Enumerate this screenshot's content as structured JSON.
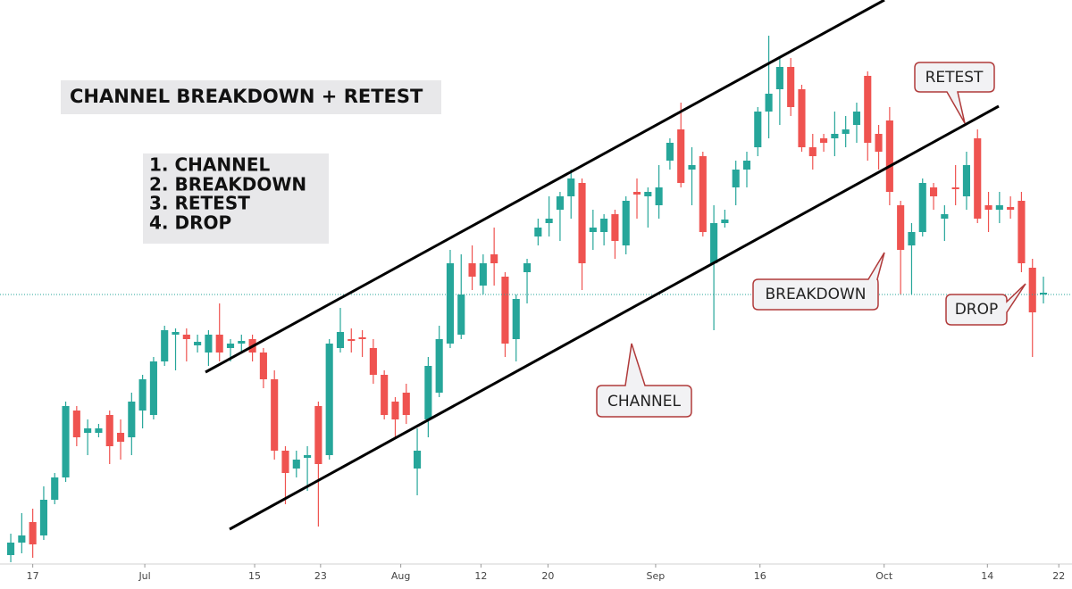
{
  "chart_data": {
    "type": "candlestick",
    "title": "CHANNEL BREAKDOWN + RETEST",
    "steps": [
      "1. CHANNEL",
      "2. BREAKDOWN",
      "3. RETEST",
      "4. DROP"
    ],
    "callouts": [
      "RETEST",
      "BREAKDOWN",
      "CHANNEL",
      "DROP"
    ],
    "up_color": "#26a69a",
    "down_color": "#ef5350",
    "xlim": [
      -0.98,
      96.6
    ],
    "ylim": [
      0,
      630
    ],
    "xticks": [
      {
        "value": 2,
        "label": "17"
      },
      {
        "value": 12.2,
        "label": "Jul"
      },
      {
        "value": 22.2,
        "label": "15"
      },
      {
        "value": 28.2,
        "label": "23"
      },
      {
        "value": 35.5,
        "label": "Aug"
      },
      {
        "value": 42.8,
        "label": "12"
      },
      {
        "value": 48.9,
        "label": "20"
      },
      {
        "value": 58.7,
        "label": "Sep"
      },
      {
        "value": 68.2,
        "label": "16"
      },
      {
        "value": 79.5,
        "label": "Oct"
      },
      {
        "value": 88.9,
        "label": "14"
      },
      {
        "value": 95.4,
        "label": "22"
      }
    ],
    "open": [
      8,
      22,
      45,
      30,
      70,
      95,
      170,
      145,
      145,
      165,
      145,
      140,
      170,
      165,
      225,
      255,
      255,
      243,
      235,
      255,
      240,
      245,
      250,
      235,
      205,
      125,
      105,
      117,
      175,
      120,
      240,
      250,
      252,
      240,
      210,
      180,
      190,
      105,
      160,
      190,
      245,
      255,
      335,
      310,
      345,
      320,
      250,
      325,
      365,
      380,
      395,
      410,
      425,
      370,
      370,
      390,
      355,
      415,
      410,
      400,
      450,
      485,
      440,
      455,
      335,
      380,
      420,
      440,
      465,
      505,
      530,
      555,
      530,
      465,
      475,
      475,
      480,
      490,
      545,
      480,
      495,
      400,
      355,
      370,
      420,
      385,
      420,
      410,
      475,
      400,
      395,
      398,
      405,
      330,
      300
    ],
    "high": [
      32,
      55,
      60,
      85,
      100,
      180,
      175,
      160,
      155,
      170,
      160,
      190,
      210,
      230,
      265,
      262,
      262,
      255,
      260,
      290,
      250,
      255,
      255,
      240,
      215,
      130,
      125,
      130,
      180,
      250,
      285,
      262,
      260,
      250,
      215,
      185,
      200,
      150,
      230,
      265,
      350,
      345,
      355,
      345,
      375,
      325,
      300,
      340,
      385,
      410,
      415,
      440,
      430,
      395,
      390,
      395,
      410,
      430,
      420,
      445,
      475,
      515,
      465,
      460,
      400,
      395,
      450,
      460,
      510,
      590,
      565,
      565,
      535,
      480,
      480,
      505,
      500,
      515,
      550,
      490,
      510,
      405,
      380,
      430,
      425,
      400,
      445,
      460,
      485,
      415,
      415,
      410,
      415,
      340,
      320
    ],
    "low": [
      0,
      10,
      5,
      25,
      65,
      90,
      130,
      120,
      140,
      110,
      115,
      120,
      150,
      160,
      220,
      215,
      225,
      235,
      220,
      225,
      225,
      235,
      225,
      195,
      115,
      65,
      95,
      80,
      40,
      115,
      235,
      235,
      230,
      200,
      160,
      140,
      155,
      75,
      140,
      185,
      240,
      250,
      305,
      300,
      310,
      230,
      225,
      290,
      355,
      365,
      360,
      385,
      305,
      350,
      355,
      340,
      345,
      385,
      375,
      385,
      440,
      420,
      400,
      365,
      260,
      375,
      400,
      420,
      455,
      475,
      490,
      500,
      460,
      440,
      460,
      455,
      465,
      470,
      450,
      440,
      400,
      300,
      300,
      365,
      395,
      360,
      400,
      395,
      380,
      370,
      380,
      385,
      325,
      230,
      290
    ],
    "close": [
      22,
      30,
      20,
      70,
      95,
      175,
      140,
      150,
      150,
      130,
      135,
      180,
      205,
      225,
      260,
      258,
      250,
      247,
      255,
      235,
      245,
      248,
      235,
      205,
      125,
      100,
      115,
      120,
      110,
      245,
      258,
      248,
      250,
      210,
      165,
      160,
      165,
      125,
      220,
      250,
      335,
      300,
      320,
      335,
      335,
      245,
      295,
      335,
      375,
      385,
      410,
      430,
      335,
      375,
      385,
      360,
      405,
      412,
      415,
      420,
      470,
      425,
      445,
      370,
      380,
      384,
      440,
      450,
      505,
      525,
      555,
      510,
      465,
      455,
      470,
      480,
      485,
      505,
      470,
      460,
      415,
      350,
      370,
      425,
      410,
      390,
      418,
      445,
      385,
      395,
      400,
      395,
      335,
      280,
      302
    ]
  }
}
